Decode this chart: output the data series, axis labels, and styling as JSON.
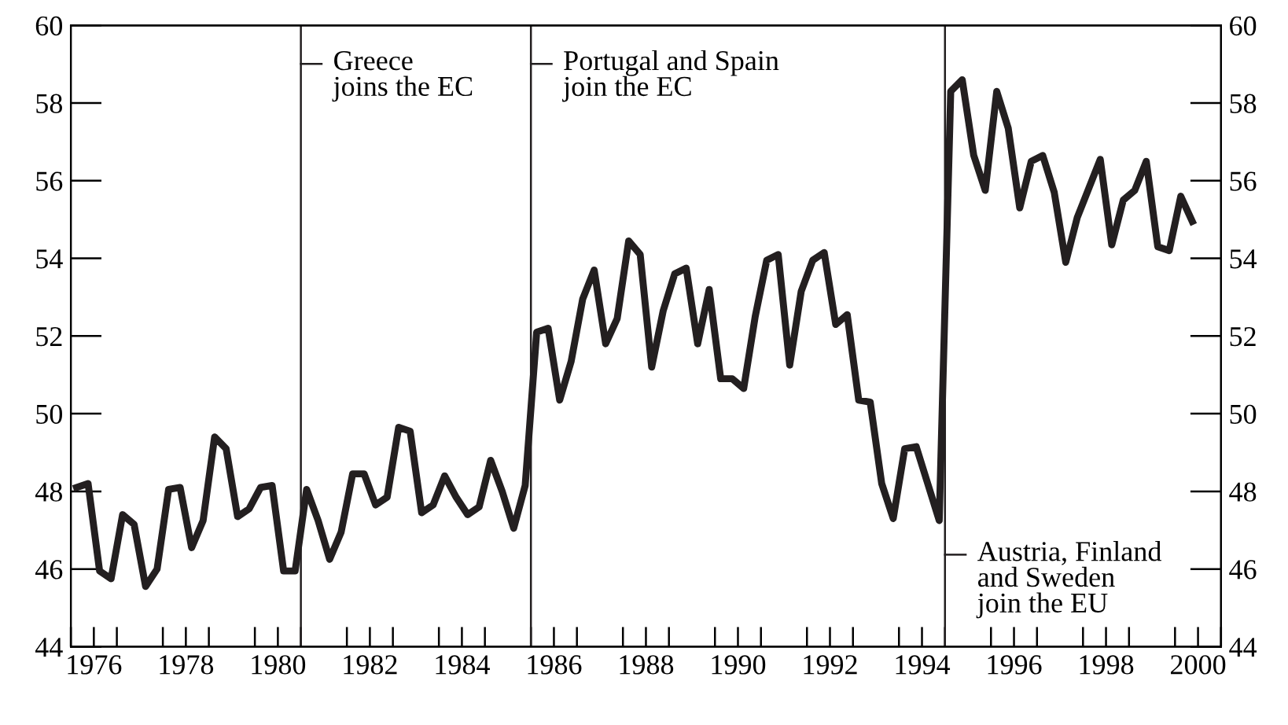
{
  "chart_data": {
    "type": "line",
    "x": [
      1976.125,
      1976.375,
      1976.625,
      1976.875,
      1977.125,
      1977.375,
      1977.625,
      1977.875,
      1978.125,
      1978.375,
      1978.625,
      1978.875,
      1979.125,
      1979.375,
      1979.625,
      1979.875,
      1980.125,
      1980.375,
      1980.625,
      1980.875,
      1981.125,
      1981.375,
      1981.625,
      1981.875,
      1982.125,
      1982.375,
      1982.625,
      1982.875,
      1983.125,
      1983.375,
      1983.625,
      1983.875,
      1984.125,
      1984.375,
      1984.625,
      1984.875,
      1985.125,
      1985.375,
      1985.625,
      1985.875,
      1986.125,
      1986.375,
      1986.625,
      1986.875,
      1987.125,
      1987.375,
      1987.625,
      1987.875,
      1988.125,
      1988.375,
      1988.625,
      1988.875,
      1989.125,
      1989.375,
      1989.625,
      1989.875,
      1990.125,
      1990.375,
      1990.625,
      1990.875,
      1991.125,
      1991.375,
      1991.625,
      1991.875,
      1992.125,
      1992.375,
      1992.625,
      1992.875,
      1993.125,
      1993.375,
      1993.625,
      1993.875,
      1994.125,
      1994.375,
      1994.625,
      1994.875,
      1995.125,
      1995.375,
      1995.625,
      1995.875,
      1996.125,
      1996.375,
      1996.625,
      1996.875,
      1997.125,
      1997.375,
      1997.625,
      1997.875,
      1998.125,
      1998.375,
      1998.625,
      1998.875,
      1999.125,
      1999.375,
      1999.625,
      1999.875,
      2000.125,
      2000.375
    ],
    "series": [
      {
        "color": "#231f20",
        "values": [
          48.1,
          48.2,
          45.95,
          45.75,
          47.4,
          47.15,
          45.55,
          46.0,
          48.05,
          48.1,
          46.55,
          47.25,
          49.4,
          49.1,
          47.35,
          47.55,
          48.1,
          48.15,
          45.95,
          45.95,
          48.05,
          47.25,
          46.25,
          46.95,
          48.45,
          48.45,
          47.65,
          47.85,
          49.65,
          49.55,
          47.45,
          47.65,
          48.4,
          47.85,
          47.4,
          47.6,
          48.8,
          48.0,
          47.05,
          48.15,
          52.1,
          52.2,
          50.35,
          51.35,
          52.95,
          53.7,
          51.8,
          52.45,
          54.45,
          54.1,
          51.2,
          52.65,
          53.6,
          53.75,
          51.8,
          53.2,
          50.9,
          50.9,
          50.65,
          52.5,
          53.95,
          54.1,
          51.25,
          53.15,
          53.95,
          54.15,
          52.3,
          52.55,
          50.35,
          50.3,
          48.2,
          47.3,
          49.1,
          49.15,
          48.2,
          47.25,
          58.3,
          58.6,
          56.65,
          55.75,
          58.3,
          57.35,
          55.3,
          56.5,
          56.65,
          55.7,
          53.9,
          55.05,
          55.8,
          56.55,
          54.35,
          55.5,
          55.75,
          56.5,
          54.3,
          54.2,
          55.6,
          54.95
        ]
      }
    ],
    "xlim": [
      1976,
      2001
    ],
    "xticks": [
      {
        "value": 1976,
        "label": null
      },
      {
        "value": 1976.5,
        "label": "1976"
      },
      {
        "value": 1977,
        "label": null
      },
      {
        "value": 1978,
        "label": null
      },
      {
        "value": 1978.5,
        "label": "1978"
      },
      {
        "value": 1979,
        "label": null
      },
      {
        "value": 1980,
        "label": null
      },
      {
        "value": 1980.5,
        "label": "1980"
      },
      {
        "value": 1981,
        "label": null
      },
      {
        "value": 1982,
        "label": null
      },
      {
        "value": 1982.5,
        "label": "1982"
      },
      {
        "value": 1983,
        "label": null
      },
      {
        "value": 1984,
        "label": null
      },
      {
        "value": 1984.5,
        "label": "1984"
      },
      {
        "value": 1985,
        "label": null
      },
      {
        "value": 1986,
        "label": null
      },
      {
        "value": 1986.5,
        "label": "1986"
      },
      {
        "value": 1987,
        "label": null
      },
      {
        "value": 1988,
        "label": null
      },
      {
        "value": 1988.5,
        "label": "1988"
      },
      {
        "value": 1989,
        "label": null
      },
      {
        "value": 1990,
        "label": null
      },
      {
        "value": 1990.5,
        "label": "1990"
      },
      {
        "value": 1991,
        "label": null
      },
      {
        "value": 1992,
        "label": null
      },
      {
        "value": 1992.5,
        "label": "1992"
      },
      {
        "value": 1993,
        "label": null
      },
      {
        "value": 1994,
        "label": null
      },
      {
        "value": 1994.5,
        "label": "1994"
      },
      {
        "value": 1995,
        "label": null
      },
      {
        "value": 1996,
        "label": null
      },
      {
        "value": 1996.5,
        "label": "1996"
      },
      {
        "value": 1997,
        "label": null
      },
      {
        "value": 1998,
        "label": null
      },
      {
        "value": 1998.5,
        "label": "1998"
      },
      {
        "value": 1999,
        "label": null
      },
      {
        "value": 2000,
        "label": null
      },
      {
        "value": 2000.5,
        "label": "2000"
      },
      {
        "value": 2001,
        "label": null
      }
    ],
    "ylim": [
      44,
      60
    ],
    "yticks": [
      44,
      46,
      48,
      50,
      52,
      54,
      56,
      58,
      60
    ],
    "y2lim": [
      44,
      60
    ],
    "y2ticks": [
      44,
      46,
      48,
      50,
      52,
      54,
      56,
      58,
      60
    ],
    "ref_lines": [
      {
        "axis": "x",
        "value": 1981,
        "label": "Greece\njoins the EC",
        "color": "#231f20",
        "line_style": "solid"
      },
      {
        "axis": "x",
        "value": 1986,
        "label": "Portugal and Spain\njoin the EC",
        "color": "#231f20",
        "line_style": "solid"
      },
      {
        "axis": "x",
        "value": 1995,
        "label": "Austria, Finland\nand Sweden\njoin the EU",
        "color": "#231f20",
        "line_style": "solid"
      }
    ],
    "grid": false,
    "legend": false,
    "marker": "none",
    "line_style": "solid"
  }
}
